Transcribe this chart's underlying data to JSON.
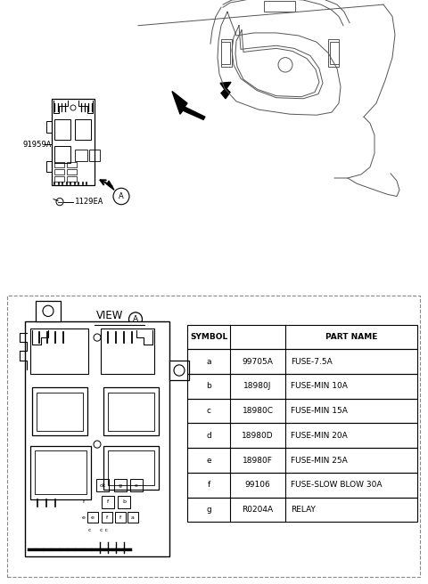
{
  "bg_color": "#ffffff",
  "line_color": "#000000",
  "gray_color": "#555555",
  "dashed_color": "#888888",
  "label_91959A": "91959A",
  "label_1129EA": "1129EA",
  "table_data": {
    "rows": [
      [
        "a",
        "99705A",
        "FUSE-7.5A"
      ],
      [
        "b",
        "18980J",
        "FUSE-MIN 10A"
      ],
      [
        "c",
        "18980C",
        "FUSE-MIN 15A"
      ],
      [
        "d",
        "18980D",
        "FUSE-MIN 20A"
      ],
      [
        "e",
        "18980F",
        "FUSE-MIN 25A"
      ],
      [
        "f",
        "99106",
        "FUSE-SLOW BLOW 30A"
      ],
      [
        "g",
        "R0204A",
        "RELAY"
      ]
    ]
  }
}
